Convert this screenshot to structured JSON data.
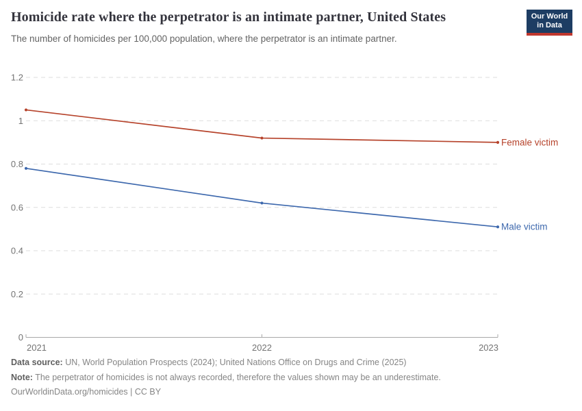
{
  "header": {
    "title": "Homicide rate where the perpetrator is an intimate partner, United States",
    "subtitle": "The number of homicides per 100,000 population, where the perpetrator is an intimate partner."
  },
  "logo": {
    "line1": "Our World",
    "line2": "in Data",
    "bg_color": "#1d3d63",
    "stripe_color": "#c0372e"
  },
  "chart_data": {
    "type": "line",
    "title": "Homicide rate where the perpetrator is an intimate partner, United States",
    "x": [
      2021,
      2022,
      2023
    ],
    "series": [
      {
        "name": "Female victim",
        "values": [
          1.05,
          0.92,
          0.9
        ],
        "color": "#b6432b"
      },
      {
        "name": "Male victim",
        "values": [
          0.78,
          0.62,
          0.51
        ],
        "color": "#3d68ad"
      }
    ],
    "xlabel": "",
    "ylabel": "",
    "ylim": [
      0,
      1.2
    ],
    "yticks": [
      0,
      0.2,
      0.4,
      0.6,
      0.8,
      1,
      1.2
    ],
    "xticks": [
      2021,
      2022,
      2023
    ],
    "grid": "horizontal-dashed",
    "legend_position": "end-of-line-labels"
  },
  "footer": {
    "datasource_label": "Data source:",
    "datasource_text": " UN, World Population Prospects (2024); United Nations Office on Drugs and Crime (2025)",
    "note_label": "Note:",
    "note_text": " The perpetrator of homicides is not always recorded, therefore the values shown may be an underestimate.",
    "license_text": "OurWorldinData.org/homicides | CC BY"
  }
}
